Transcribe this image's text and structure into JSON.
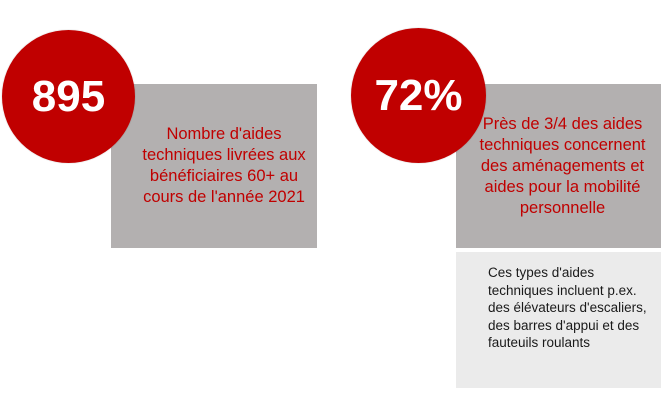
{
  "stats": [
    {
      "value": "895",
      "description": "Nombre d'aides techniques livrées aux bénéficiaires 60+ au cours de l'année 2021"
    },
    {
      "value": "72%",
      "description": "Près de 3/4 des aides techniques concernent des aménagements et aides pour la mobilité personnelle",
      "note": "Ces types d'aides techniques incluent p.ex. des élévateurs d'escaliers, des barres d'appui et des fauteuils roulants"
    }
  ],
  "colors": {
    "accent_red": "#c00000",
    "box_gray": "#b3b0b0",
    "box_light": "#ebebeb"
  }
}
